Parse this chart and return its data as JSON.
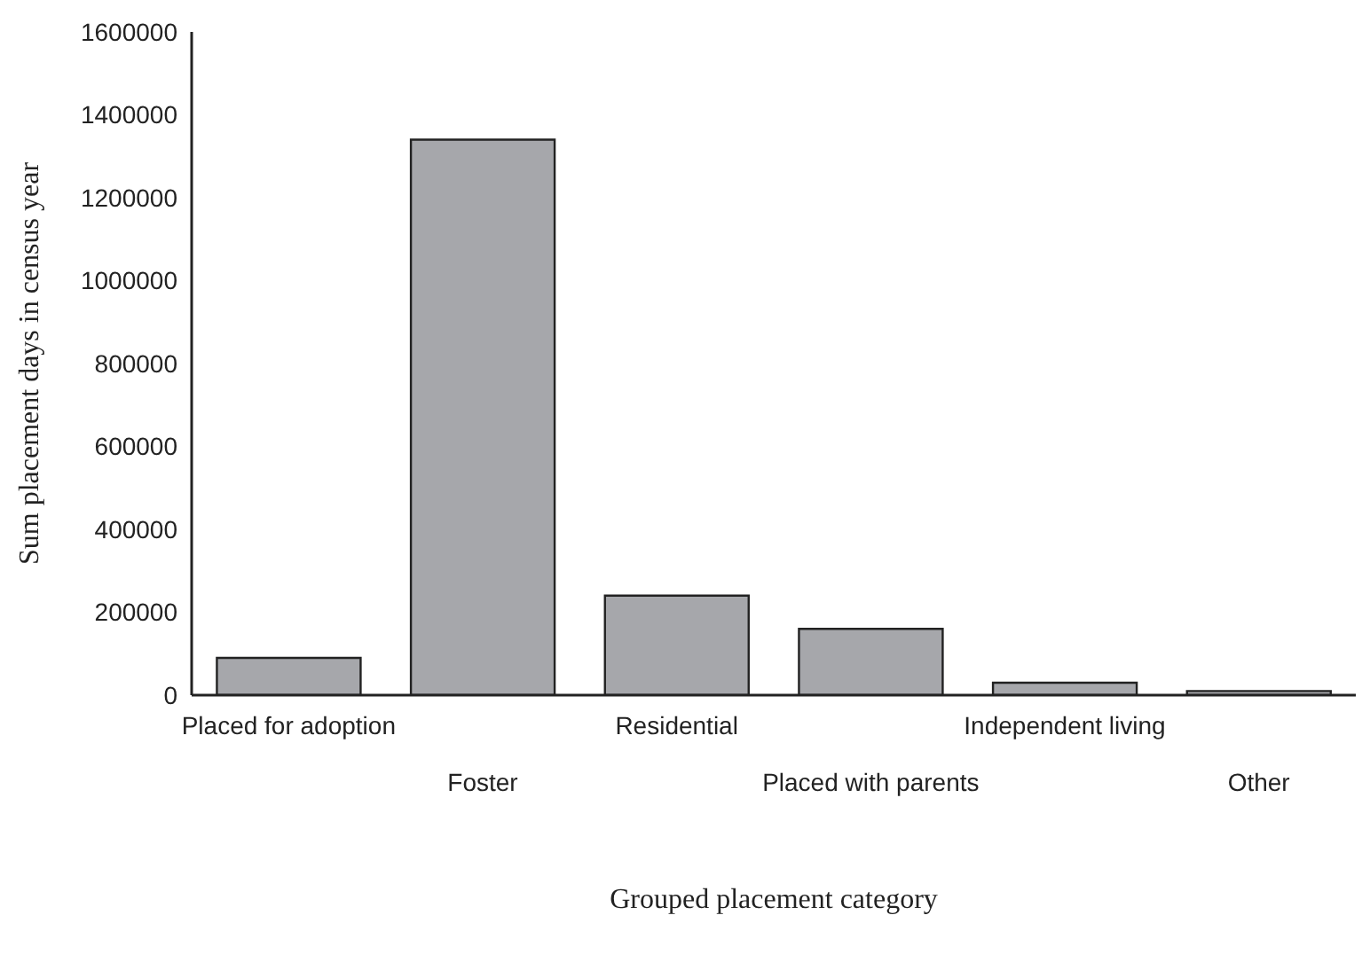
{
  "chart_data": {
    "type": "bar",
    "xlabel": "Grouped placement category",
    "ylabel": "Sum placement days in census year",
    "categories": [
      "Placed for adoption",
      "Foster",
      "Residential",
      "Placed with parents",
      "Independent living",
      "Other"
    ],
    "values": [
      90000,
      1340000,
      240000,
      160000,
      30000,
      10000
    ],
    "color": "#a6a7ab",
    "ylim": [
      0,
      1600000
    ],
    "yticks": [
      0,
      200000,
      400000,
      600000,
      800000,
      1000000,
      1200000,
      1400000,
      1600000
    ],
    "grid": false,
    "legend": false
  }
}
